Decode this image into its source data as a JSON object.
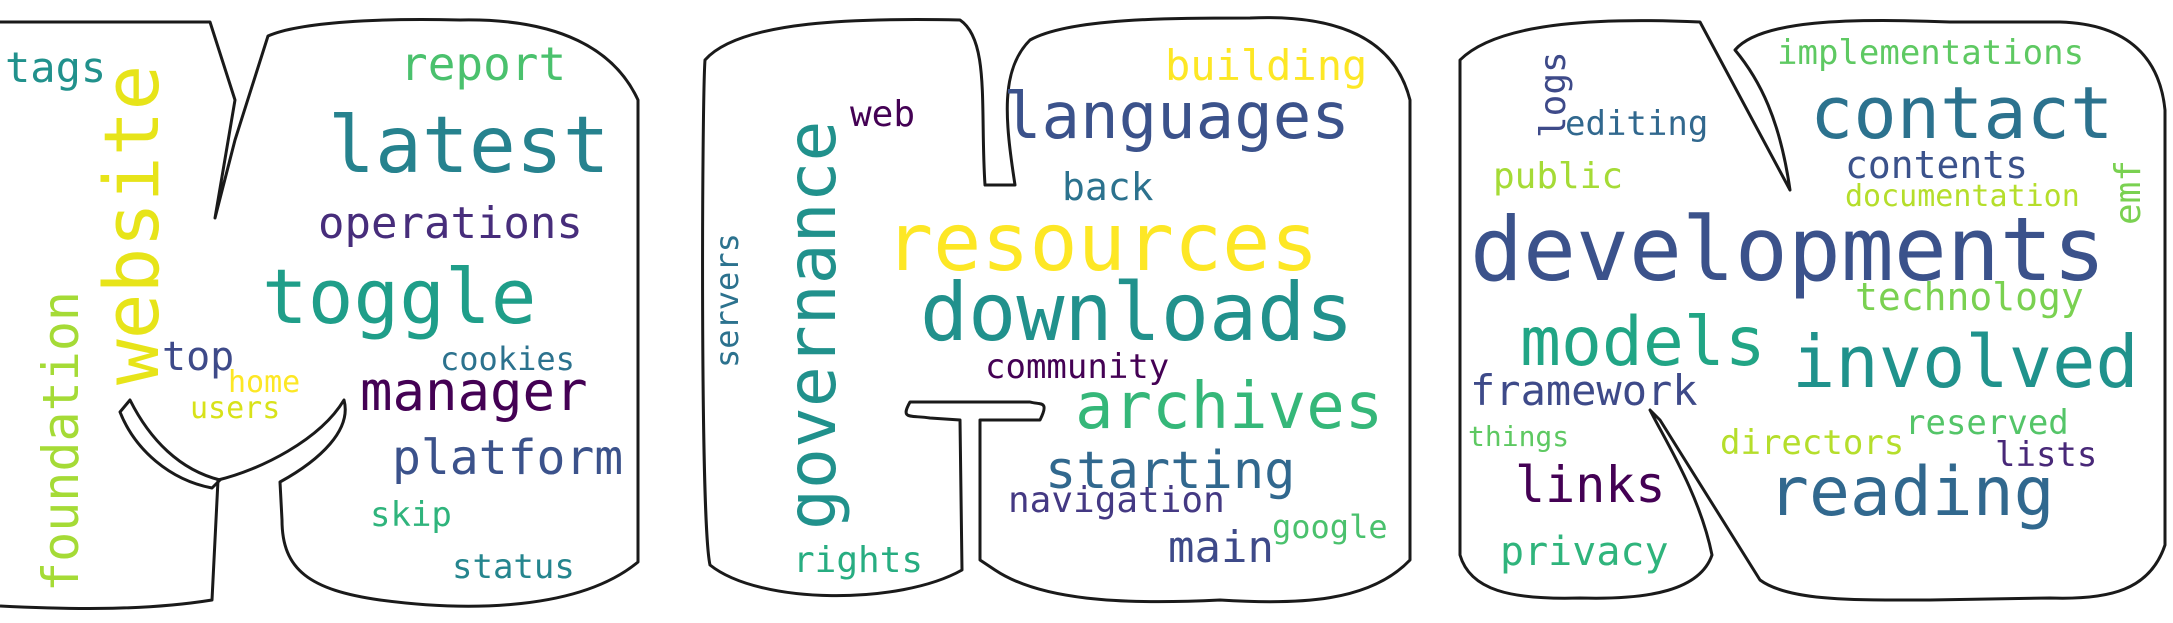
{
  "words": [
    {
      "text": "tags",
      "color": "#21918c"
    },
    {
      "text": "website",
      "color": "#e7e419"
    },
    {
      "text": "report",
      "color": "#4ac16d"
    },
    {
      "text": "latest",
      "color": "#26828e"
    },
    {
      "text": "operations",
      "color": "#472d7b"
    },
    {
      "text": "toggle",
      "color": "#1f9e89"
    },
    {
      "text": "foundation",
      "color": "#a5db36"
    },
    {
      "text": "top",
      "color": "#3e4a89"
    },
    {
      "text": "home",
      "color": "#fde725"
    },
    {
      "text": "users",
      "color": "#d8e219"
    },
    {
      "text": "cookies",
      "color": "#2c728e"
    },
    {
      "text": "manager",
      "color": "#440154"
    },
    {
      "text": "platform",
      "color": "#3b528b"
    },
    {
      "text": "skip",
      "color": "#2fb47c"
    },
    {
      "text": "status",
      "color": "#25858e"
    },
    {
      "text": "governance",
      "color": "#21918c"
    },
    {
      "text": "web",
      "color": "#440154"
    },
    {
      "text": "building",
      "color": "#fde725"
    },
    {
      "text": "languages",
      "color": "#3b528b"
    },
    {
      "text": "back",
      "color": "#2c728e"
    },
    {
      "text": "resources",
      "color": "#fde725"
    },
    {
      "text": "servers",
      "color": "#2c728e"
    },
    {
      "text": "downloads",
      "color": "#21918c"
    },
    {
      "text": "community",
      "color": "#440154"
    },
    {
      "text": "archives",
      "color": "#35b779"
    },
    {
      "text": "starting",
      "color": "#31688e"
    },
    {
      "text": "navigation",
      "color": "#443983"
    },
    {
      "text": "main",
      "color": "#3e4a89"
    },
    {
      "text": "google",
      "color": "#4ac16d"
    },
    {
      "text": "rights",
      "color": "#27ad81"
    },
    {
      "text": "logs",
      "color": "#3e4a89"
    },
    {
      "text": "editing",
      "color": "#31688e"
    },
    {
      "text": "implementations",
      "color": "#5ec962"
    },
    {
      "text": "contact",
      "color": "#2c728e"
    },
    {
      "text": "public",
      "color": "#a5db36"
    },
    {
      "text": "contents",
      "color": "#3b528b"
    },
    {
      "text": "documentation",
      "color": "#b5de2b"
    },
    {
      "text": "emf",
      "color": "#7ad151"
    },
    {
      "text": "developments",
      "color": "#3b528b"
    },
    {
      "text": "technology",
      "color": "#7ad151"
    },
    {
      "text": "models",
      "color": "#21a585"
    },
    {
      "text": "involved",
      "color": "#20928c"
    },
    {
      "text": "framework",
      "color": "#3e4a89"
    },
    {
      "text": "things",
      "color": "#5ec962"
    },
    {
      "text": "directors",
      "color": "#b5de2b"
    },
    {
      "text": "reserved",
      "color": "#54c568"
    },
    {
      "text": "lists",
      "color": "#482878"
    },
    {
      "text": "links",
      "color": "#440154"
    },
    {
      "text": "reading",
      "color": "#31688e"
    },
    {
      "text": "privacy",
      "color": "#2fb47c"
    }
  ]
}
